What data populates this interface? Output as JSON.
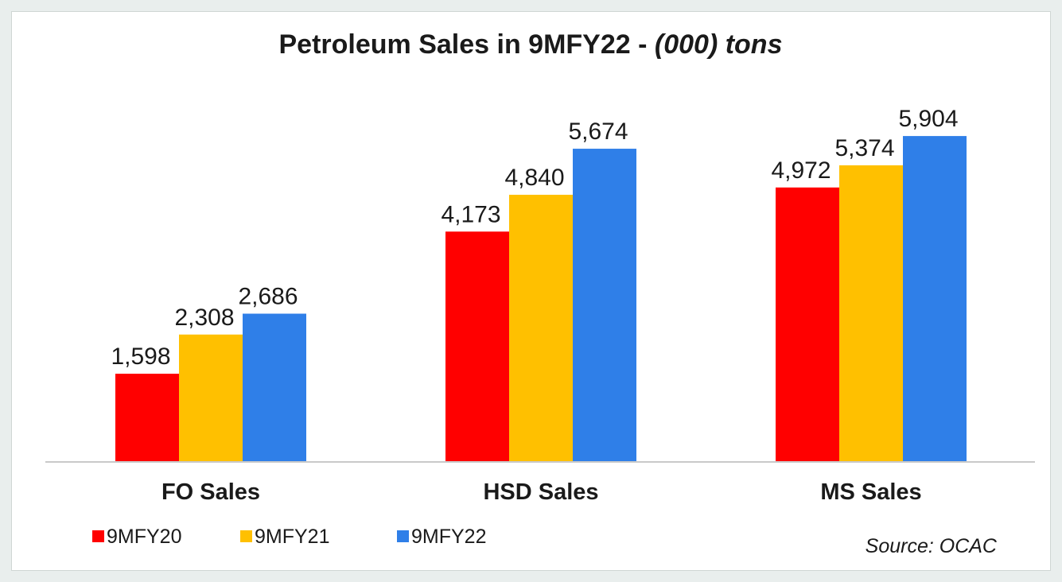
{
  "chart_data": {
    "type": "bar",
    "title": "Petroleum Sales in 9MFY22 - ",
    "title_unit": "(000) tons",
    "categories": [
      "FO Sales",
      "HSD Sales",
      "MS Sales"
    ],
    "series": [
      {
        "name": "9MFY20",
        "color": "#ff0000",
        "values": [
          1598,
          4173,
          4972
        ],
        "labels": [
          "1,598",
          "4,173",
          "4,972"
        ]
      },
      {
        "name": "9MFY21",
        "color": "#ffc000",
        "values": [
          2308,
          4840,
          5374
        ],
        "labels": [
          "2,308",
          "4,840",
          "5,374"
        ]
      },
      {
        "name": "9MFY22",
        "color": "#2f7fe8",
        "values": [
          2686,
          5674,
          5904
        ],
        "labels": [
          "2,686",
          "5,674",
          "5,904"
        ]
      }
    ],
    "ylim": [
      0,
      7000
    ],
    "grid": false,
    "legend_position": "bottom-left",
    "xlabel": "",
    "ylabel": ""
  },
  "source": "Source: OCAC"
}
